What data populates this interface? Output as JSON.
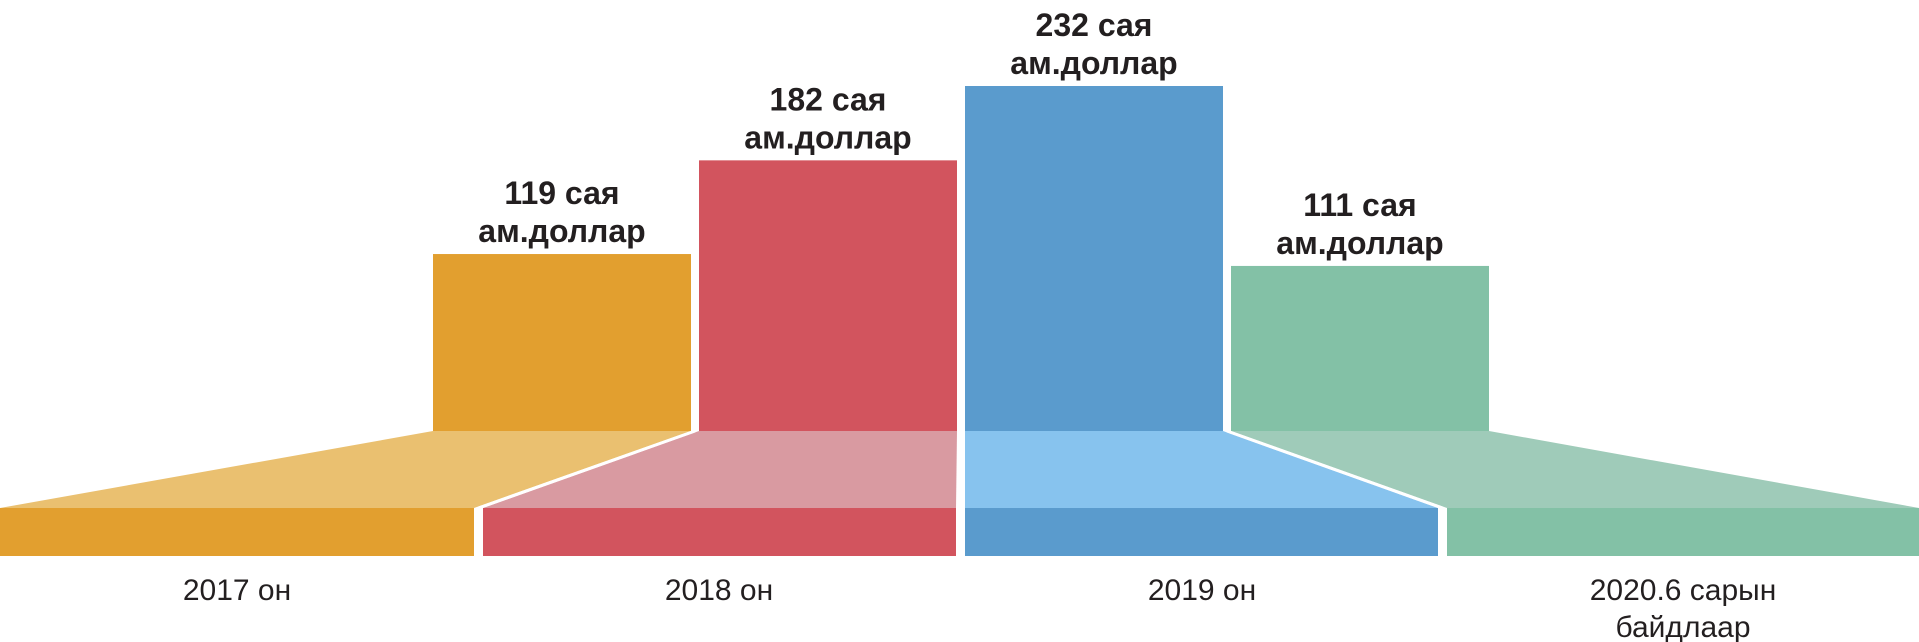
{
  "chart_data": {
    "type": "bar",
    "categories": [
      "2017 он",
      "2018 он",
      "2019 он",
      "2020.6 сарын байдлаар"
    ],
    "values": [
      119,
      182,
      232,
      111
    ],
    "value_labels": [
      "119 сая ам.доллар",
      "182 сая ам.доллар",
      "232 сая ам.доллар",
      "111 сая ам.доллар"
    ],
    "unit": "сая ам.доллар",
    "title": "",
    "xlabel": "",
    "ylabel": "",
    "grid": false,
    "legend": "none"
  },
  "colors": {
    "series": [
      "#e29f2f",
      "#d2545e",
      "#5a9bcd",
      "#83c1a6"
    ],
    "fan": [
      "#eac070",
      "#d99aa1",
      "#87c3ee",
      "#9fcbb9"
    ],
    "text": "#231f20"
  }
}
